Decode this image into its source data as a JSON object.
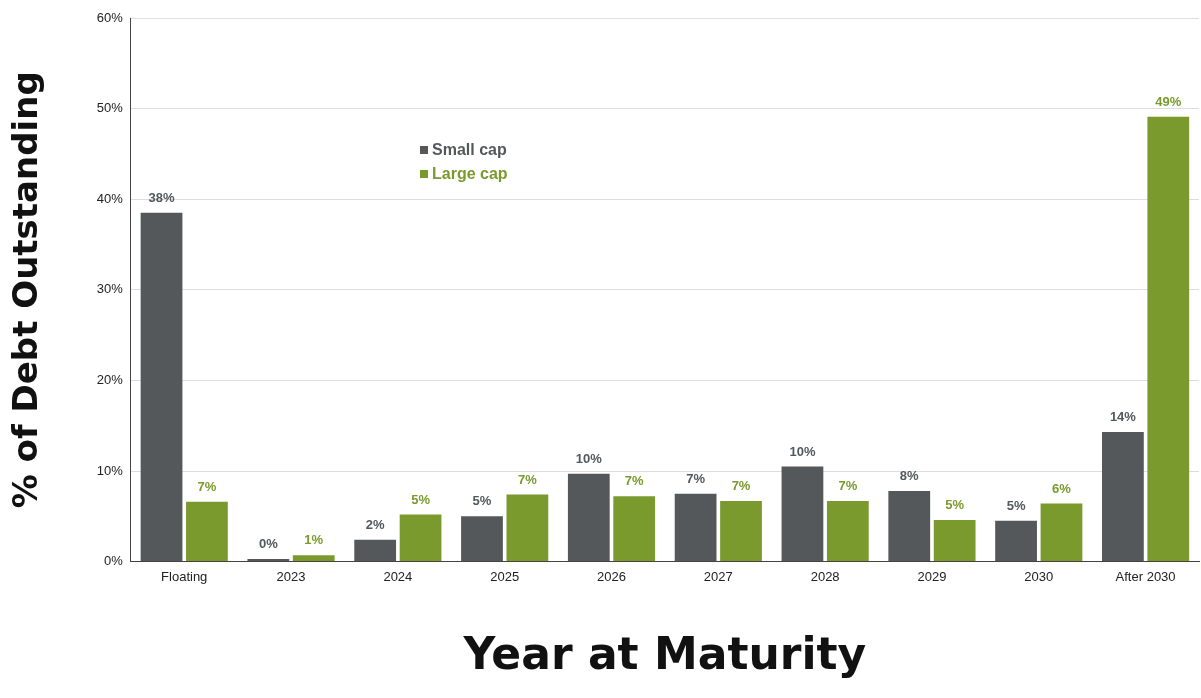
{
  "chart_data": {
    "type": "bar",
    "xlabel": "Year at Maturity",
    "ylabel": "% of Debt Outstanding",
    "categories": [
      "Floating",
      "2023",
      "2024",
      "2025",
      "2026",
      "2027",
      "2028",
      "2029",
      "2030",
      "After 2030"
    ],
    "series": [
      {
        "name": "Small cap",
        "color": "#54585a",
        "values": [
          38.5,
          0.3,
          2.4,
          5.0,
          9.7,
          7.5,
          10.5,
          7.8,
          4.5,
          14.3
        ],
        "value_labels": [
          "38%",
          "0%",
          "2%",
          "5%",
          "10%",
          "7%",
          "10%",
          "8%",
          "5%",
          "14%"
        ]
      },
      {
        "name": "Large cap",
        "color": "#7a9a2e",
        "values": [
          6.6,
          0.7,
          5.2,
          7.4,
          7.2,
          6.7,
          6.7,
          4.6,
          6.4,
          49.1
        ],
        "value_labels": [
          "7%",
          "1%",
          "5%",
          "7%",
          "7%",
          "7%",
          "7%",
          "5%",
          "6%",
          "49%"
        ]
      }
    ],
    "ylim": [
      0,
      60
    ],
    "yticks": [
      {
        "value": 0,
        "label": "0%"
      },
      {
        "value": 10,
        "label": "10%"
      },
      {
        "value": 20,
        "label": "20%"
      },
      {
        "value": 30,
        "label": "30%"
      },
      {
        "value": 40,
        "label": "40%"
      },
      {
        "value": 50,
        "label": "50%"
      },
      {
        "value": 60,
        "label": "60%"
      }
    ],
    "grid": "y",
    "legend": "top left"
  }
}
